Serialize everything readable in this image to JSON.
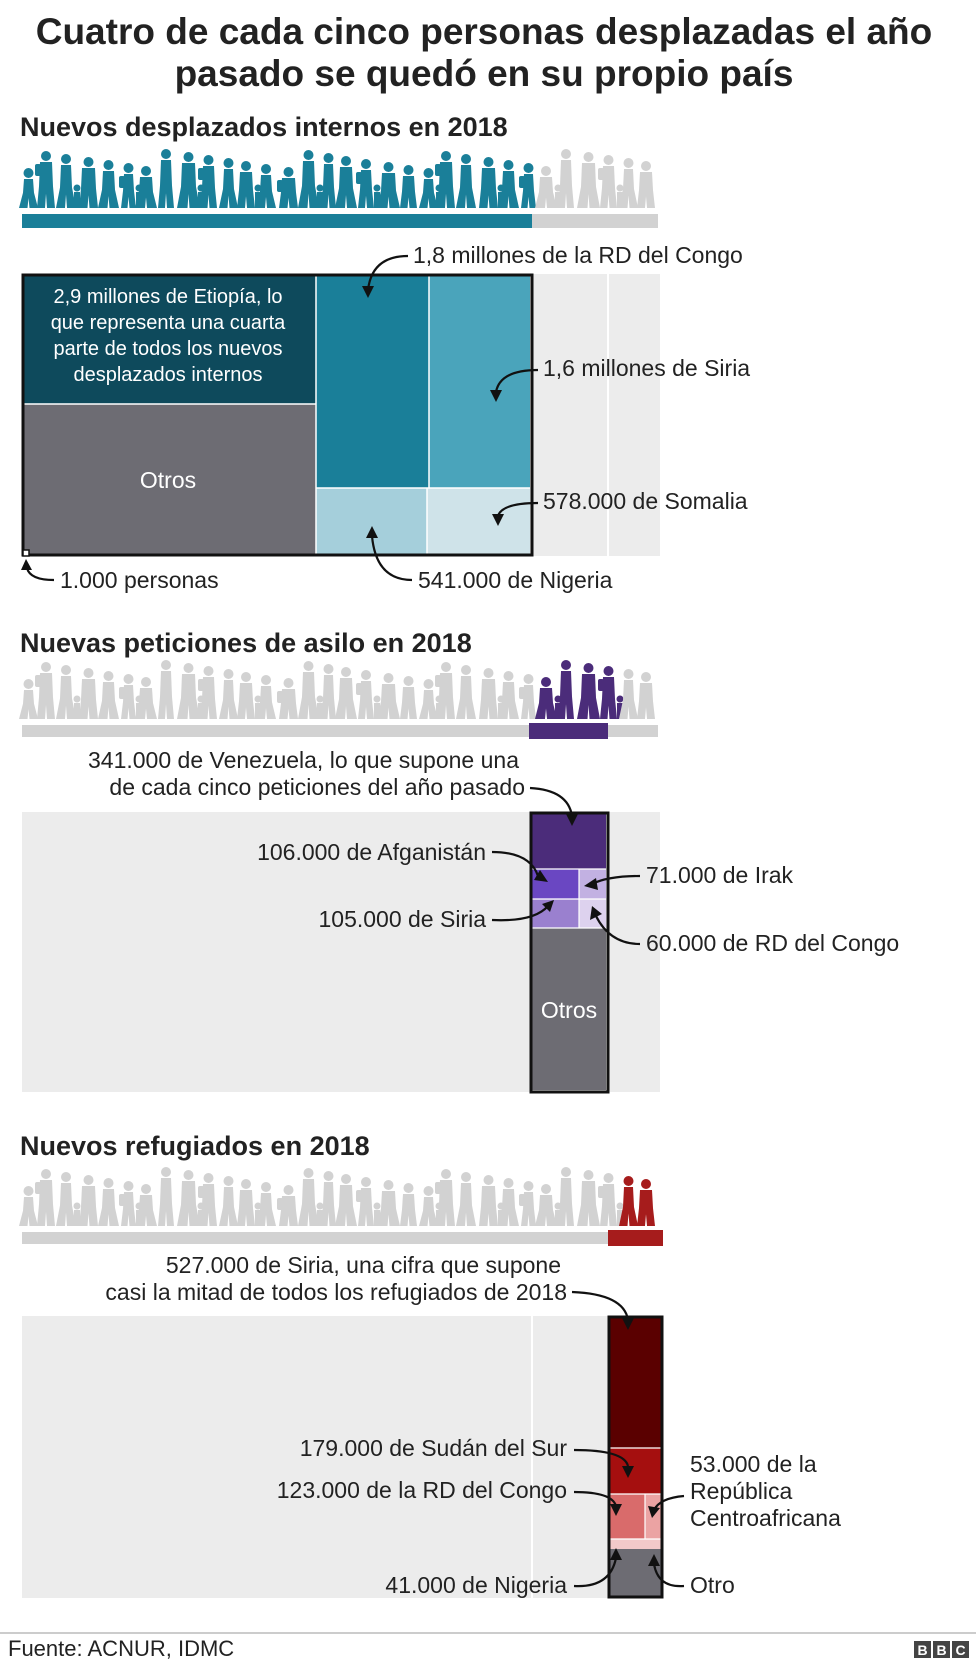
{
  "title_lines": [
    "Cuatro de cada cinco personas desplazadas el año",
    "pasado se quedó en su propio país"
  ],
  "source": "Fuente: ACNUR, IDMC",
  "logo_text": "BBC",
  "colors": {
    "grey_bg": "#ececec",
    "grey_people": "#d2d2d2",
    "otros": "#6d6c73",
    "idp_people": "#1a7f99",
    "asylum_people": "#4b2c7a",
    "refugee_people": "#a61c1c"
  },
  "scale_note": "1.000 personas",
  "chart_data": [
    {
      "type": "treemap",
      "title": "Nuevos desplazados internos en 2018",
      "unit": "personas",
      "share_of_total": 0.8,
      "items": [
        {
          "label": "2,9 millones de Etiopía, lo que representa una cuarta parte de todos los nuevos desplazados internos",
          "value": 2900000,
          "color": "#0e4a5c",
          "label_lines": [
            "2,9 millones de Etiopía, lo",
            "que representa una cuarta",
            "parte de todos los nuevos",
            "desplazados internos"
          ]
        },
        {
          "label": "Otros",
          "color": "#6d6c73"
        },
        {
          "label": "1,8 millones de la RD del Congo",
          "value": 1800000,
          "color": "#1a7f99"
        },
        {
          "label": "1,6 millones de Siria",
          "value": 1600000,
          "color": "#4aa4bb"
        },
        {
          "label": "541.000 de Nigeria",
          "value": 541000,
          "color": "#a5cfdb"
        },
        {
          "label": "578.000 de Somalia",
          "value": 578000,
          "color": "#cfe3e9"
        }
      ]
    },
    {
      "type": "treemap",
      "title": "Nuevas peticiones de asilo en 2018",
      "unit": "personas",
      "items": [
        {
          "label": "341.000 de Venezuela, lo que supone una de cada cinco peticiones del año pasado",
          "value": 341000,
          "color": "#4b2c7a",
          "label_lines": [
            "341.000 de Venezuela, lo que supone una",
            "de cada cinco peticiones del año pasado"
          ]
        },
        {
          "label": "106.000 de Afganistán",
          "value": 106000,
          "color": "#6a47c2"
        },
        {
          "label": "71.000 de Irak",
          "value": 71000,
          "color": "#c2b1e2"
        },
        {
          "label": "105.000 de Siria",
          "value": 105000,
          "color": "#9a80cf"
        },
        {
          "label": "60.000 de RD del Congo",
          "value": 60000,
          "color": "#ddd2ee"
        },
        {
          "label": "Otros",
          "color": "#6d6c73"
        }
      ]
    },
    {
      "type": "treemap",
      "title": "Nuevos refugiados en 2018",
      "unit": "personas",
      "items": [
        {
          "label": "527.000 de Siria, una cifra que supone casi la mitad de todos los refugiados de 2018",
          "value": 527000,
          "color": "#5a0000",
          "label_lines": [
            "527.000 de Siria, una cifra que supone",
            "casi la mitad de todos los refugiados de 2018"
          ]
        },
        {
          "label": "179.000 de Sudán del Sur",
          "value": 179000,
          "color": "#a50f0f"
        },
        {
          "label": "123.000 de la RD del Congo",
          "value": 123000,
          "color": "#d96b6b"
        },
        {
          "label": "53.000 de la República Centroafricana",
          "value": 53000,
          "color": "#eba3a3",
          "label_lines": [
            "53.000 de la",
            "República",
            "Centroafricana"
          ]
        },
        {
          "label": "41.000 de Nigeria",
          "value": 41000,
          "color": "#f2c9c9"
        },
        {
          "label": "Otro",
          "color": "#6d6c73"
        }
      ]
    }
  ]
}
